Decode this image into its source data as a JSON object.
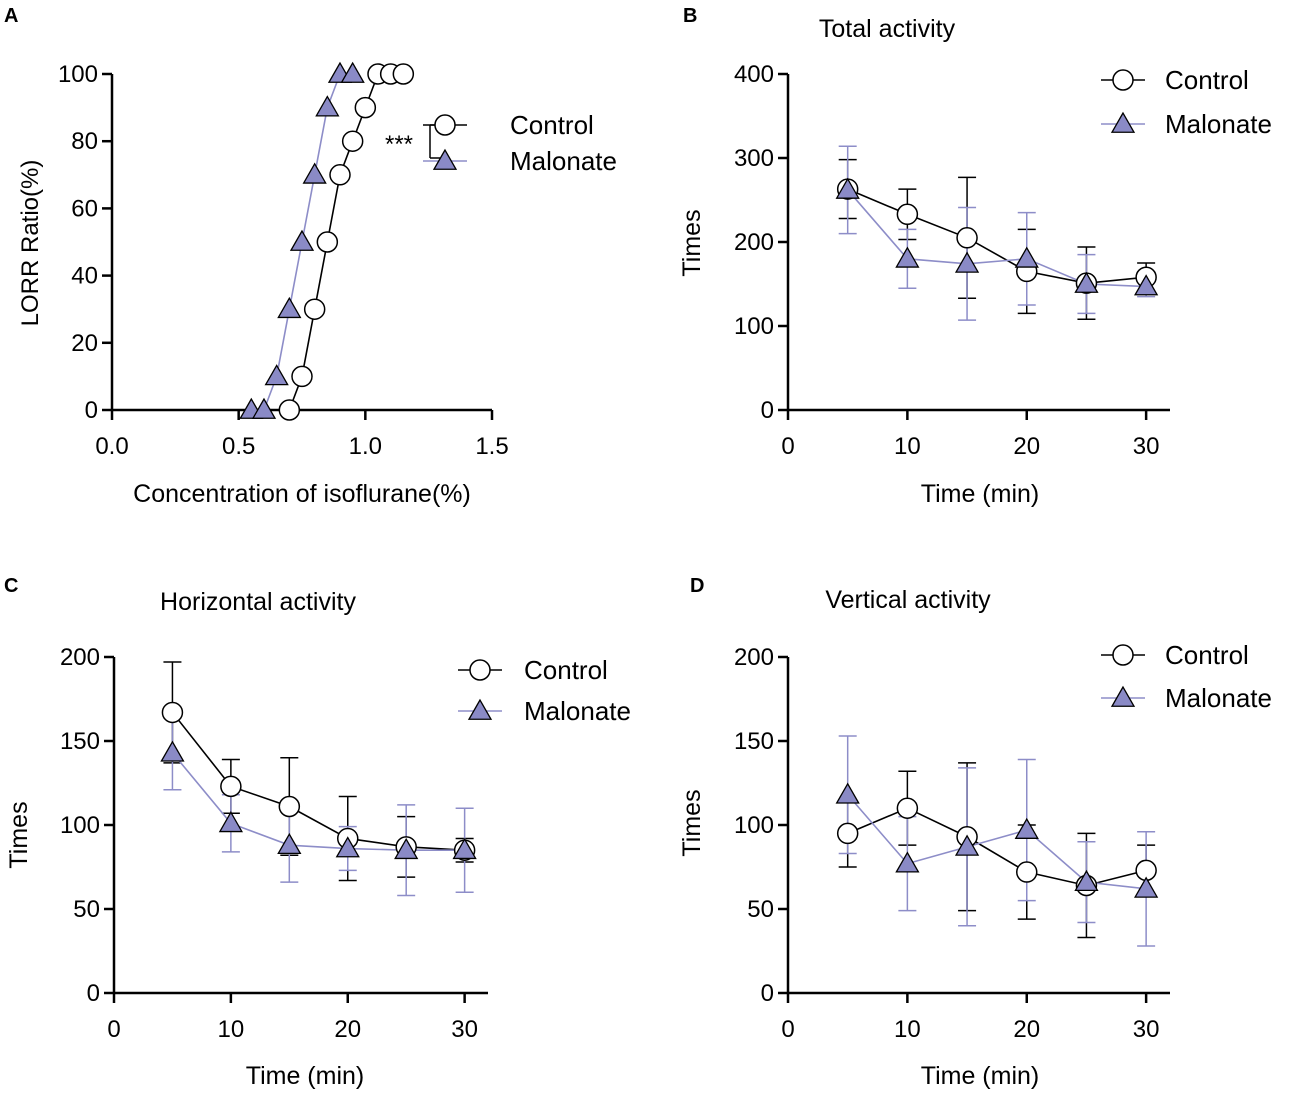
{
  "colors": {
    "control_line": "#000000",
    "control_fill": "#ffffff",
    "malonate_line": "#8d8dc8",
    "malonate_fill": "#8a8ac6",
    "axis": "#000000"
  },
  "chart_data": [
    {
      "panel": "A",
      "type": "line",
      "title": "",
      "xlabel": "Concentration of isoflurane(%)",
      "ylabel": "LORR Ratio(%)",
      "xlim": [
        0,
        1.5
      ],
      "ylim": [
        0,
        100
      ],
      "xticks": [
        "0.0",
        "0.5",
        "1.0",
        "1.5"
      ],
      "yticks": [
        "0",
        "20",
        "40",
        "60",
        "80",
        "100"
      ],
      "significance": "***",
      "legend": [
        "Control",
        "Malonate"
      ],
      "series": [
        {
          "name": "Control",
          "marker": "circle",
          "x": [
            0.7,
            0.75,
            0.8,
            0.85,
            0.9,
            0.95,
            1.0,
            1.05,
            1.1,
            1.15
          ],
          "y": [
            0,
            10,
            30,
            50,
            70,
            80,
            90,
            100,
            100,
            100
          ]
        },
        {
          "name": "Malonate",
          "marker": "triangle",
          "x": [
            0.55,
            0.6,
            0.65,
            0.7,
            0.75,
            0.8,
            0.85,
            0.9,
            0.95
          ],
          "y": [
            0,
            0,
            10,
            30,
            50,
            70,
            90,
            100,
            100
          ]
        }
      ]
    },
    {
      "panel": "B",
      "type": "line",
      "title": "Total activity",
      "xlabel": "Time (min)",
      "ylabel": "Times",
      "xlim": [
        0,
        32
      ],
      "ylim": [
        0,
        400
      ],
      "xticks": [
        "0",
        "10",
        "20",
        "30"
      ],
      "yticks": [
        "0",
        "100",
        "200",
        "300",
        "400"
      ],
      "legend": [
        "Control",
        "Malonate"
      ],
      "x": [
        5,
        10,
        15,
        20,
        25,
        30
      ],
      "series": [
        {
          "name": "Control",
          "marker": "circle",
          "values": [
            263,
            233,
            205,
            165,
            151,
            158
          ],
          "err": [
            35,
            30,
            72,
            50,
            43,
            17
          ]
        },
        {
          "name": "Malonate",
          "marker": "triangle",
          "values": [
            262,
            180,
            174,
            180,
            150,
            147
          ],
          "err": [
            52,
            35,
            67,
            55,
            35,
            12
          ]
        }
      ]
    },
    {
      "panel": "C",
      "type": "line",
      "title": "Horizontal activity",
      "xlabel": "Time (min)",
      "ylabel": "Times",
      "xlim": [
        0,
        32
      ],
      "ylim": [
        0,
        200
      ],
      "xticks": [
        "0",
        "10",
        "20",
        "30"
      ],
      "yticks": [
        "0",
        "50",
        "100",
        "150",
        "200"
      ],
      "legend": [
        "Control",
        "Malonate"
      ],
      "x": [
        5,
        10,
        15,
        20,
        25,
        30
      ],
      "series": [
        {
          "name": "Control",
          "marker": "circle",
          "values": [
            167,
            123,
            111,
            92,
            87,
            85
          ],
          "err": [
            30,
            16,
            29,
            25,
            18,
            7
          ]
        },
        {
          "name": "Malonate",
          "marker": "triangle",
          "values": [
            143,
            101,
            88,
            86,
            85,
            85
          ],
          "err": [
            22,
            17,
            22,
            13,
            27,
            25
          ]
        }
      ]
    },
    {
      "panel": "D",
      "type": "line",
      "title": "Vertical activity",
      "xlabel": "Time (min)",
      "ylabel": "Times",
      "xlim": [
        0,
        32
      ],
      "ylim": [
        0,
        200
      ],
      "xticks": [
        "0",
        "10",
        "20",
        "30"
      ],
      "yticks": [
        "0",
        "50",
        "100",
        "150",
        "200"
      ],
      "legend": [
        "Control",
        "Malonate"
      ],
      "x": [
        5,
        10,
        15,
        20,
        25,
        30
      ],
      "series": [
        {
          "name": "Control",
          "marker": "circle",
          "values": [
            95,
            110,
            93,
            72,
            64,
            73
          ],
          "err": [
            20,
            22,
            44,
            28,
            31,
            15
          ]
        },
        {
          "name": "Malonate",
          "marker": "triangle",
          "values": [
            118,
            77,
            87,
            97,
            66,
            62
          ],
          "err": [
            35,
            28,
            47,
            42,
            24,
            34
          ]
        }
      ]
    }
  ]
}
